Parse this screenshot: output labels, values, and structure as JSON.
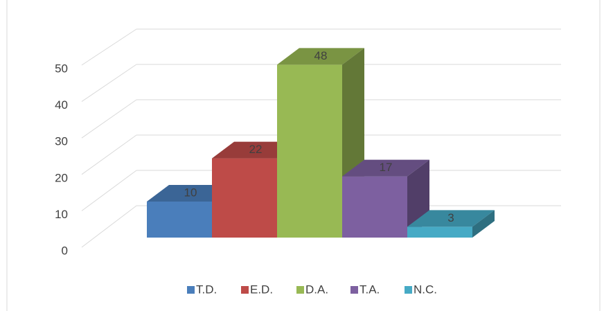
{
  "chart_data": {
    "type": "bar",
    "three_d": true,
    "categories": [
      "T.D.",
      "E.D.",
      "D.A.",
      "T.A.",
      "N.C."
    ],
    "values": [
      10,
      22,
      48,
      17,
      3
    ],
    "colors": [
      "#4a7ebb",
      "#be4b48",
      "#98b954",
      "#7d60a0",
      "#46aac5"
    ],
    "ylim": [
      0,
      50
    ],
    "yticks": [
      0,
      10,
      20,
      30,
      40,
      50
    ],
    "grid": true,
    "legend": "bottom"
  }
}
